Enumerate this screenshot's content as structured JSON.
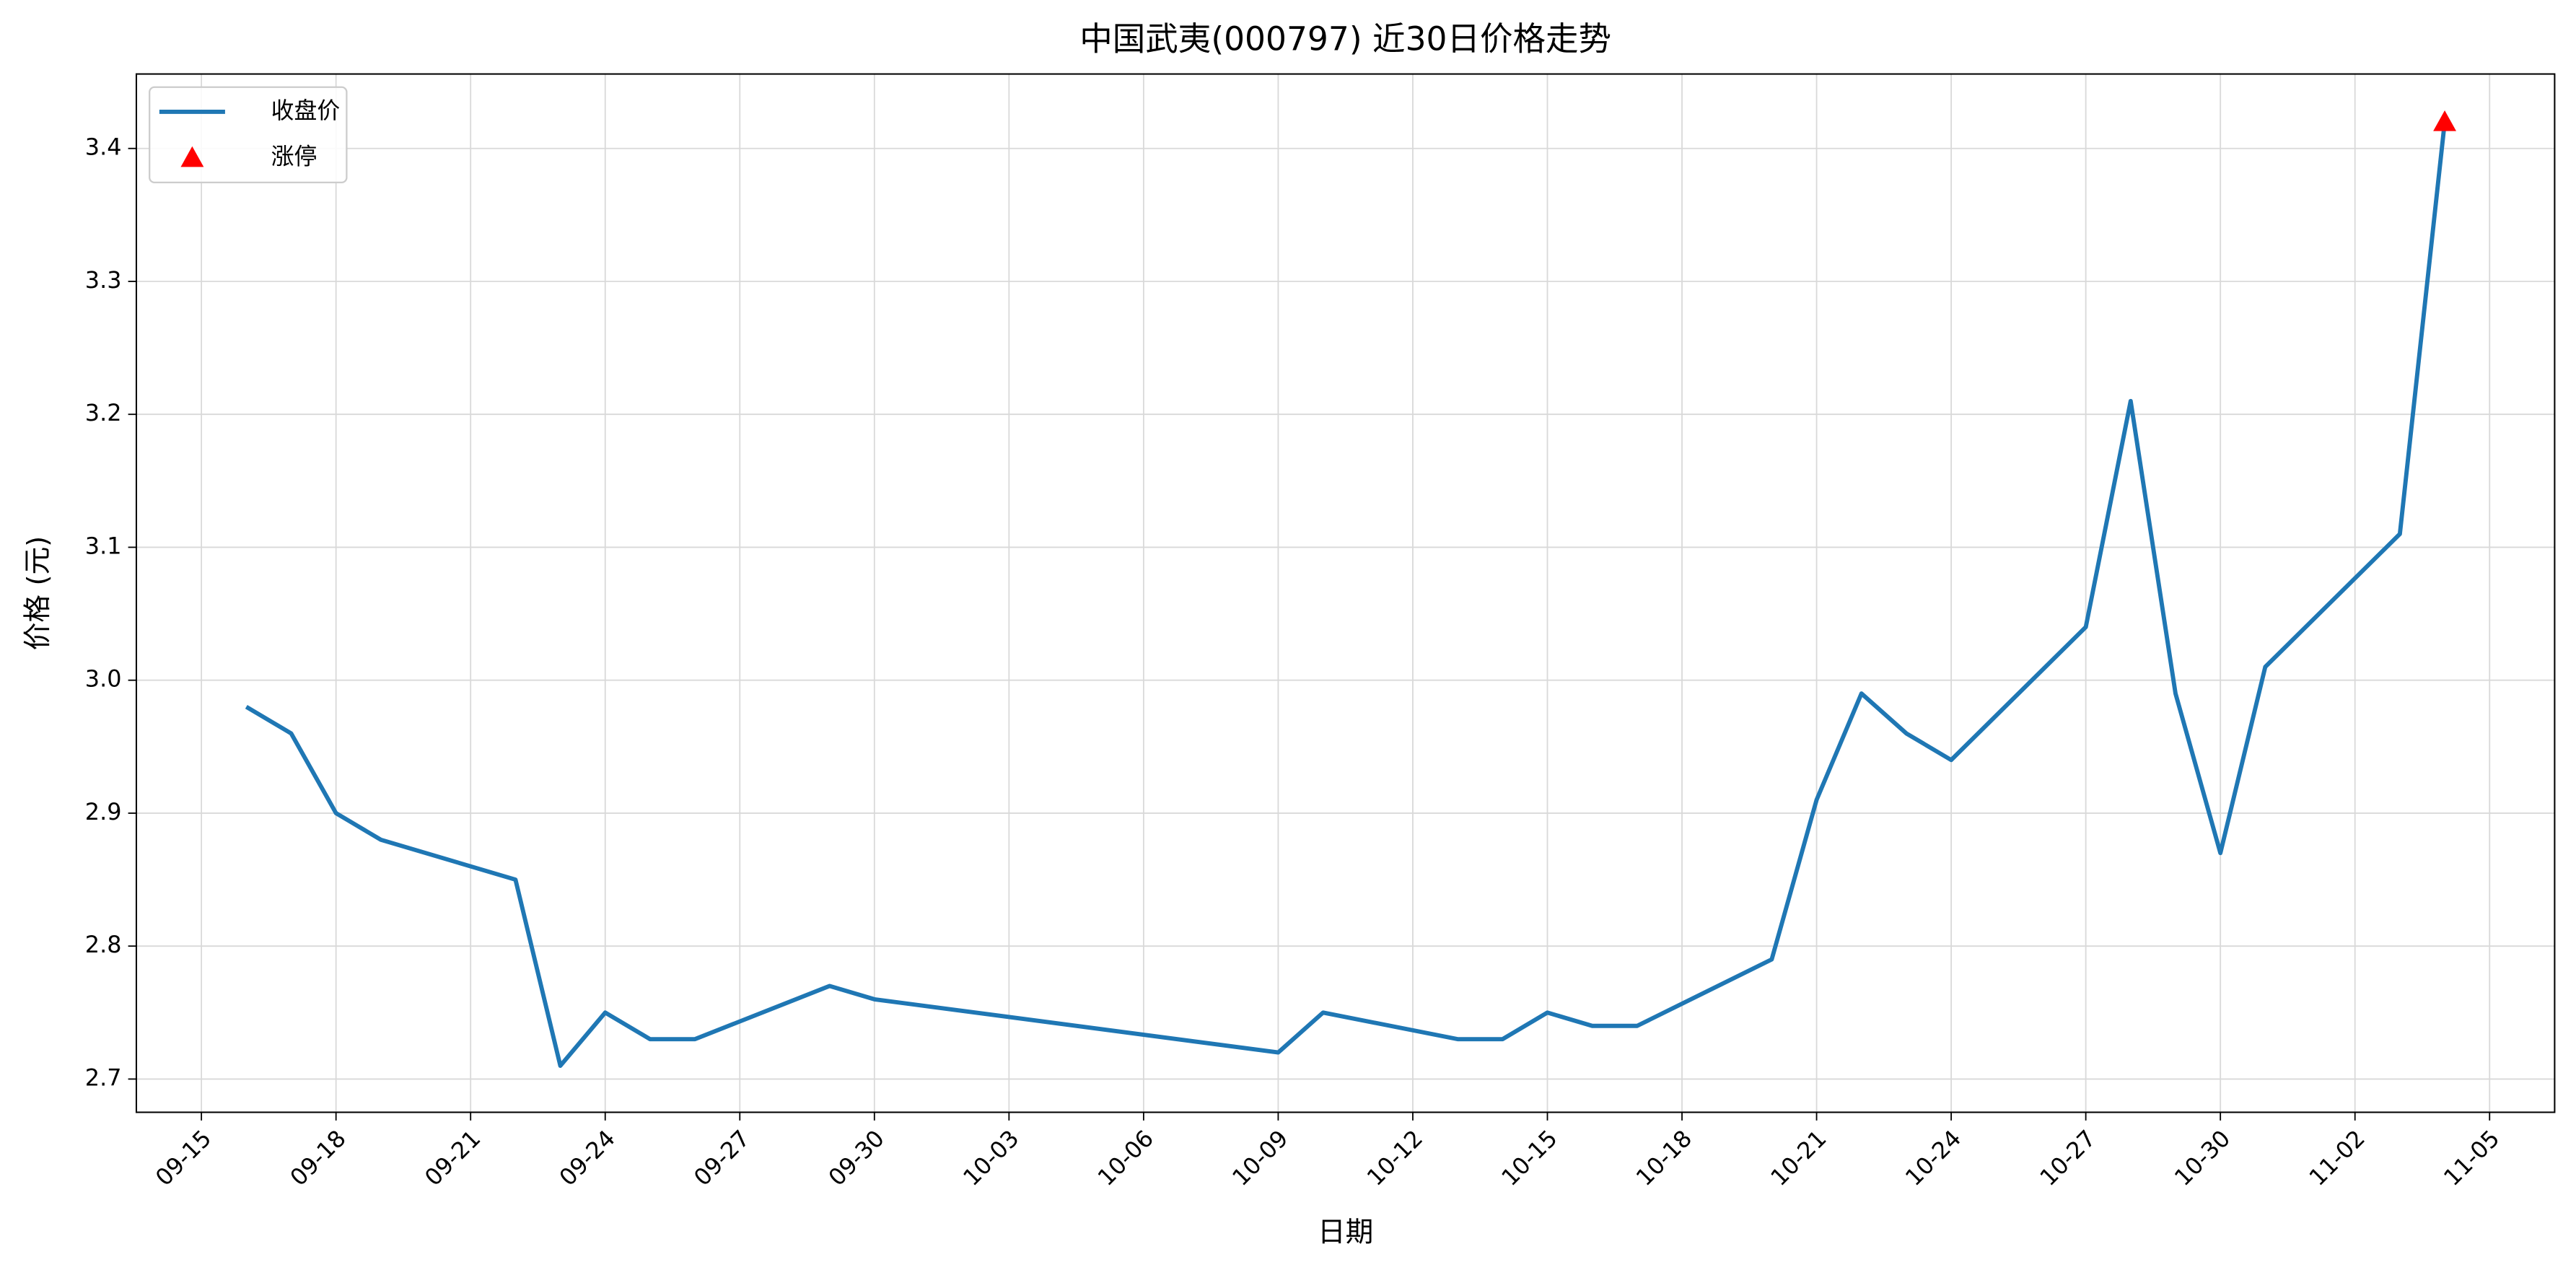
{
  "chart_data": {
    "type": "line",
    "title": "中国武夷(000797) 近30日价格走势",
    "x_label": "日期",
    "y_label": "价格 (元)",
    "series": [
      {
        "name": "收盘价",
        "color": "#1f77b4",
        "x": [
          "09-16",
          "09-17",
          "09-18",
          "09-19",
          "09-22",
          "09-23",
          "09-24",
          "09-25",
          "09-26",
          "09-29",
          "09-30",
          "10-09",
          "10-10",
          "10-13",
          "10-14",
          "10-15",
          "10-16",
          "10-17",
          "10-20",
          "10-21",
          "10-22",
          "10-23",
          "10-24",
          "10-27",
          "10-28",
          "10-29",
          "10-30",
          "10-31",
          "11-03",
          "11-04"
        ],
        "values": [
          2.98,
          2.96,
          2.9,
          2.88,
          2.85,
          2.71,
          2.75,
          2.73,
          2.73,
          2.77,
          2.76,
          2.72,
          2.75,
          2.73,
          2.73,
          2.75,
          2.74,
          2.74,
          2.79,
          2.91,
          2.99,
          2.96,
          2.94,
          3.04,
          3.21,
          2.99,
          2.87,
          3.01,
          3.11,
          3.42
        ]
      },
      {
        "name": "涨停",
        "color": "#ff0000",
        "marker": "triangle",
        "x": [
          "11-04"
        ],
        "values": [
          3.42
        ]
      }
    ],
    "ylim": [
      2.675,
      3.456
    ],
    "yticks": [
      2.7,
      2.8,
      2.9,
      {
        "value": 3.0,
        "label": "3.0"
      },
      3.1,
      3.2,
      3.3,
      3.4
    ],
    "xticks": [
      "09-15",
      "09-18",
      "09-21",
      "09-24",
      "09-27",
      "09-30",
      "10-03",
      "10-06",
      "10-09",
      "10-12",
      "10-15",
      "10-18",
      "10-21",
      "10-24",
      "10-27",
      "10-30",
      "11-02",
      "11-05"
    ],
    "grid": true,
    "legend": "upper left"
  }
}
